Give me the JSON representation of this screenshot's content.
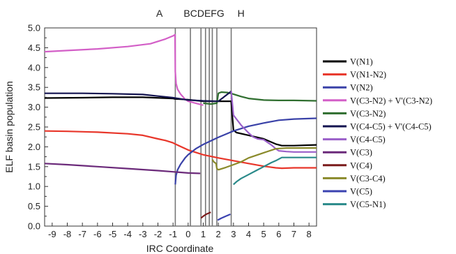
{
  "chart_data": {
    "type": "line",
    "title": "",
    "xlabel": "IRC Coordinate",
    "ylabel": "ELF basin population",
    "xlim": [
      -9.5,
      8.5
    ],
    "ylim": [
      0.0,
      5.0
    ],
    "xticks": [
      -9,
      -8,
      -7,
      -6,
      -5,
      -4,
      -3,
      -2,
      -1,
      0,
      1,
      2,
      3,
      4,
      5,
      6,
      7,
      8
    ],
    "yticks": [
      0.0,
      0.5,
      1.0,
      1.5,
      2.0,
      2.5,
      3.0,
      3.5,
      4.0,
      4.5,
      5.0
    ],
    "ytick_labels": [
      "0.0",
      "0.5",
      "1.0",
      "1.5",
      "2.0",
      "2.5",
      "3.0",
      "3.5",
      "4.0",
      "4.5",
      "5.0"
    ],
    "grid": false,
    "legend_position": "right",
    "region_lines": [
      {
        "label": "A",
        "x": -0.85
      },
      {
        "label": "B",
        "x": 0.15
      },
      {
        "label": "C",
        "x": 0.85
      },
      {
        "label": "D",
        "x": 1.15
      },
      {
        "label": "E",
        "x": 1.4
      },
      {
        "label": "F",
        "x": 1.6
      },
      {
        "label": "G",
        "x": 1.9
      },
      {
        "label": "H",
        "x": 2.85
      }
    ],
    "region_labels": [
      {
        "text": "A",
        "x": -1.9
      },
      {
        "text": "BCDEFG",
        "x": 1.05
      },
      {
        "text": "H",
        "x": 3.5
      }
    ],
    "series": [
      {
        "name": "V(N1)",
        "color": "#000000",
        "x": [
          -9.5,
          -7,
          -5,
          -3,
          -1,
          -0.9,
          0,
          1,
          2,
          2.85,
          3.0,
          3.2,
          4,
          5,
          5.8,
          6.2,
          7,
          8.5
        ],
        "y": [
          3.23,
          3.24,
          3.25,
          3.25,
          3.22,
          3.21,
          3.19,
          3.15,
          3.15,
          3.15,
          2.42,
          2.36,
          2.29,
          2.2,
          2.07,
          2.03,
          2.03,
          2.05
        ]
      },
      {
        "name": "V(N1-N2)",
        "color": "#e8362a",
        "x": [
          -9.5,
          -8,
          -6,
          -4,
          -3,
          -2,
          -1.5,
          -1,
          -0.9,
          0,
          1,
          2,
          3,
          4,
          5,
          5.8,
          6.2,
          7,
          8.5
        ],
        "y": [
          2.4,
          2.39,
          2.37,
          2.33,
          2.29,
          2.2,
          2.16,
          2.1,
          2.08,
          1.92,
          1.8,
          1.72,
          1.65,
          1.58,
          1.51,
          1.47,
          1.46,
          1.47,
          1.47
        ]
      },
      {
        "name": "V(N2)",
        "color": "#3a42a8",
        "x": [
          -0.85,
          -0.8,
          -0.7,
          -0.5,
          -0.2,
          0,
          0.5,
          1,
          1.5,
          2,
          2.5,
          3,
          4,
          5,
          6,
          7,
          8.5
        ],
        "y": [
          1.05,
          1.28,
          1.42,
          1.56,
          1.72,
          1.8,
          1.95,
          2.06,
          2.15,
          2.24,
          2.32,
          2.4,
          2.52,
          2.6,
          2.67,
          2.7,
          2.72
        ]
      },
      {
        "name": "V(C3-N2) + V'(C3-N2)",
        "color": "#d35fc7",
        "x": [
          -9.5,
          -8,
          -6,
          -4,
          -2.5,
          -1.5,
          -1,
          -0.87,
          -0.85,
          -0.8,
          -0.7,
          -0.5,
          -0.2,
          0,
          0.5,
          1
        ],
        "y": [
          4.4,
          4.43,
          4.47,
          4.53,
          4.6,
          4.72,
          4.8,
          4.83,
          3.9,
          3.6,
          3.45,
          3.33,
          3.2,
          3.15,
          3.1,
          3.05
        ]
      },
      {
        "name": "V(C3-N2)",
        "color": "#2f6e2f",
        "x": [
          1.0,
          1.5,
          1.9,
          2.0,
          2.2,
          2.6,
          3.0,
          3.5,
          4,
          5,
          6,
          7,
          8.5
        ],
        "y": [
          3.1,
          3.08,
          3.1,
          3.35,
          3.38,
          3.37,
          3.33,
          3.27,
          3.22,
          3.18,
          3.17,
          3.17,
          3.16
        ]
      },
      {
        "name": "V(C4-C5) + V'(C4-C5)",
        "color": "#141450",
        "x": [
          -9.5,
          -7,
          -5,
          -3,
          -2,
          -1,
          0,
          1,
          2,
          2.85
        ],
        "y": [
          3.35,
          3.35,
          3.34,
          3.32,
          3.28,
          3.24,
          3.18,
          3.16,
          3.15,
          3.4
        ]
      },
      {
        "name": "V(C4-C5)",
        "color": "#9a5fc9",
        "x": [
          2.85,
          3.0,
          3.5,
          4,
          4.3,
          4.6,
          5,
          5.5,
          5.8,
          6,
          6.5,
          7,
          8.5
        ],
        "y": [
          3.4,
          2.8,
          2.55,
          2.35,
          2.25,
          2.2,
          2.18,
          2.05,
          1.95,
          1.9,
          1.88,
          1.87,
          1.87
        ]
      },
      {
        "name": "V(C3)",
        "color": "#6b2a7a",
        "x": [
          -9.5,
          -8,
          -6,
          -4,
          -2,
          -1,
          0,
          0.8
        ],
        "y": [
          1.58,
          1.55,
          1.5,
          1.45,
          1.4,
          1.37,
          1.34,
          1.33
        ]
      },
      {
        "name": "V(C4)",
        "color": "#7a1a1a",
        "x": [
          0.85,
          1.0,
          1.2,
          1.5
        ],
        "y": [
          0.2,
          0.25,
          0.3,
          0.35
        ]
      },
      {
        "name": "V(C3-C4)",
        "color": "#8a8a2a",
        "x": [
          1.6,
          1.7,
          1.85,
          1.9,
          2.0,
          2.5,
          3.0,
          3.5,
          4,
          5,
          5.8,
          6.5,
          8.5
        ],
        "y": [
          1.68,
          1.62,
          1.58,
          1.45,
          1.42,
          1.48,
          1.55,
          1.62,
          1.72,
          1.85,
          1.95,
          1.97,
          1.97
        ]
      },
      {
        "name": "V(C5)",
        "color": "#3a42b0",
        "x": [
          1.95,
          2.2,
          2.5,
          2.8
        ],
        "y": [
          0.15,
          0.2,
          0.25,
          0.3
        ]
      },
      {
        "name": "V(C5-N1)",
        "color": "#2a8a8a",
        "x": [
          3.0,
          3.2,
          3.5,
          4,
          4.5,
          5,
          5.5,
          5.8,
          6.2,
          7,
          8.5
        ],
        "y": [
          1.05,
          1.12,
          1.2,
          1.3,
          1.4,
          1.5,
          1.6,
          1.65,
          1.73,
          1.73,
          1.73
        ]
      }
    ]
  }
}
